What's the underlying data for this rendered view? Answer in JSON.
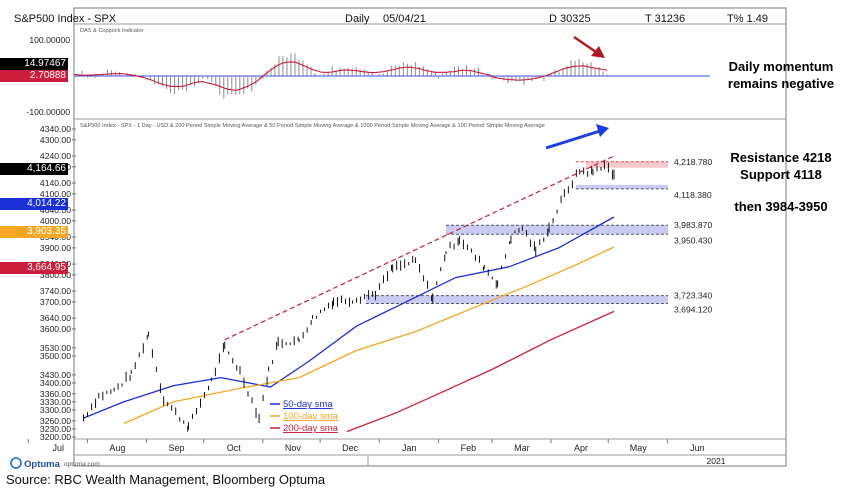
{
  "header": {
    "title": "S&P500 Index - SPX",
    "period": "Daily",
    "date": "05/04/21",
    "d_stat": "D 30325",
    "t_stat": "T 31236",
    "tpct_stat": "T% 1.49"
  },
  "upper_panel": {
    "label": "DAS & Coppock Indicator",
    "ticks": [
      "100.00000",
      "-100.00000"
    ],
    "badges": [
      {
        "text": "14.97467",
        "color": "#000000"
      },
      {
        "text": "2.70888",
        "color": "#cc1e3a"
      }
    ]
  },
  "main_panel": {
    "label": "S&P500 Index - SPX - 1 Day - USD & 200 Period Simple Moving Average & 50 Period Simple Moving Average & 1000 Period Simple Moving Average & 100 Period Simple Moving Average",
    "badges": [
      {
        "text": "4,164.66",
        "color": "#000000"
      },
      {
        "text": "4,014.22",
        "color": "#1a2fd6"
      },
      {
        "text": "3,903.35",
        "color": "#f5a623"
      },
      {
        "text": "3,664.95",
        "color": "#cc1e3a"
      }
    ],
    "levels": [
      {
        "text": "4,218.780"
      },
      {
        "text": "4,118.380"
      },
      {
        "text": "3,983.870"
      },
      {
        "text": "3,950.430"
      },
      {
        "text": "3,723.340"
      },
      {
        "text": "3,694.120"
      }
    ]
  },
  "legend": [
    {
      "text": "50-day sma",
      "color": "#1a2fd6"
    },
    {
      "text": "100-day sma",
      "color": "#f5a623"
    },
    {
      "text": "200-day sma",
      "color": "#cc1e3a"
    }
  ],
  "notes": {
    "momentum_line1": "Daily momentum",
    "momentum_line2": "remains negative",
    "resistance": "Resistance 4218",
    "support": "Support 4118",
    "then": "then 3984-3950"
  },
  "footer": {
    "logo_text": "Optuma",
    "logo_url": "optuma.com",
    "year": "2021",
    "source": "Source: RBC Wealth Management, Bloomberg Optuma"
  },
  "colors": {
    "price": "#111111",
    "sma50": "#1a2fd6",
    "sma100": "#f5a623",
    "sma200": "#cc1e3a",
    "zone": "#c9cbf2",
    "trendline": "#cc1e3a",
    "arrow_up": "#1a3fe0",
    "arrow_down": "#b0181e",
    "zero_line": "#3a4cf0"
  },
  "chart_data": [
    {
      "type": "bar",
      "name": "DAS & Coppock Indicator",
      "ylim": [
        -100,
        100
      ],
      "ticks": [
        100,
        -100
      ],
      "coppock_last": 2.70888,
      "das_last": 14.97467,
      "segments": [
        {
          "from": "Jul",
          "to": "Aug",
          "level": 25
        },
        {
          "from": "Aug",
          "to": "Sep",
          "level": 10
        },
        {
          "from": "Sep",
          "to": "Oct",
          "level": -40
        },
        {
          "from": "Oct",
          "to": "Nov",
          "level": -60
        },
        {
          "from": "Nov",
          "to": "Dec",
          "level": 60
        },
        {
          "from": "Dec",
          "to": "Jan",
          "level": 30
        },
        {
          "from": "Jan",
          "to": "Feb",
          "level": 35
        },
        {
          "from": "Feb",
          "to": "Mar",
          "level": 25
        },
        {
          "from": "Mar",
          "to": "Apr",
          "level": -15
        },
        {
          "from": "Apr",
          "to": "May",
          "level": 40
        }
      ]
    },
    {
      "type": "line",
      "name": "S&P500 Index - SPX - 1 Day",
      "x": [
        "Aug",
        "Sep",
        "Oct",
        "Nov",
        "Dec",
        "Jan",
        "Feb",
        "Mar",
        "Apr",
        "May",
        "Jun",
        "Jul"
      ],
      "year_label": "2021",
      "yticks": [
        4340,
        4300,
        4240,
        4200,
        4140,
        4100,
        4040,
        4000,
        3940,
        3900,
        3840,
        3800,
        3740,
        3700,
        3640,
        3600,
        3530,
        3500,
        3430,
        3400,
        3360,
        3330,
        3300,
        3260,
        3230,
        3200
      ],
      "ylim": [
        3200,
        4340
      ],
      "series": [
        {
          "name": "S&P500 Index - SPX",
          "last": 4164.66,
          "points": [
            [
              "Jul 30",
              3271
            ],
            [
              "Aug 7",
              3351
            ],
            [
              "Aug 15",
              3372
            ],
            [
              "Aug 24",
              3431
            ],
            [
              "Sep 2",
              3580
            ],
            [
              "Sep 10",
              3339
            ],
            [
              "Sep 23",
              3237
            ],
            [
              "Oct 5",
              3408
            ],
            [
              "Oct 12",
              3534
            ],
            [
              "Oct 20",
              3443
            ],
            [
              "Oct 30",
              3270
            ],
            [
              "Nov 4",
              3443
            ],
            [
              "Nov 9",
              3550
            ],
            [
              "Nov 20",
              3557
            ],
            [
              "Nov 27",
              3638
            ],
            [
              "Dec 8",
              3702
            ],
            [
              "Dec 18",
              3709
            ],
            [
              "Dec 30",
              3732
            ],
            [
              "Jan 8",
              3824
            ],
            [
              "Jan 20",
              3851
            ],
            [
              "Jan 29",
              3714
            ],
            [
              "Feb 5",
              3886
            ],
            [
              "Feb 12",
              3934
            ],
            [
              "Feb 25",
              3829
            ],
            [
              "Mar 4",
              3768
            ],
            [
              "Mar 11",
              3939
            ],
            [
              "Mar 17",
              3975
            ],
            [
              "Mar 24",
              3889
            ],
            [
              "Mar 31",
              3973
            ],
            [
              "Apr 8",
              4097
            ],
            [
              "Apr 16",
              4185
            ],
            [
              "Apr 23",
              4180
            ],
            [
              "Apr 29",
              4211
            ],
            [
              "May 4",
              4164.66
            ]
          ]
        },
        {
          "name": "50 Period Simple Moving Average",
          "last": 4014.22,
          "points": [
            [
              "Jul 30",
              3270
            ],
            [
              "Aug 20",
              3330
            ],
            [
              "Sep 15",
              3390
            ],
            [
              "Oct 10",
              3420
            ],
            [
              "Nov 5",
              3385
            ],
            [
              "Nov 25",
              3480
            ],
            [
              "Dec 20",
              3610
            ],
            [
              "Jan 15",
              3700
            ],
            [
              "Feb 10",
              3790
            ],
            [
              "Mar 10",
              3830
            ],
            [
              "Apr 5",
              3900
            ],
            [
              "May 4",
              4014.22
            ]
          ]
        },
        {
          "name": "100 Period Simple Moving Average",
          "last": 3903.35,
          "points": [
            [
              "Aug 20",
              3250
            ],
            [
              "Sep 15",
              3330
            ],
            [
              "Oct 20",
              3380
            ],
            [
              "Nov 20",
              3420
            ],
            [
              "Dec 20",
              3520
            ],
            [
              "Jan 20",
              3590
            ],
            [
              "Feb 20",
              3680
            ],
            [
              "Mar 20",
              3760
            ],
            [
              "Apr 15",
              3840
            ],
            [
              "May 4",
              3903.35
            ]
          ]
        },
        {
          "name": "200 Period Simple Moving Average",
          "last": 3664.95,
          "points": [
            [
              "Dec 15",
              3220
            ],
            [
              "Jan 10",
              3290
            ],
            [
              "Feb 1",
              3360
            ],
            [
              "Mar 1",
              3450
            ],
            [
              "Apr 1",
              3560
            ],
            [
              "May 4",
              3664.95
            ]
          ]
        }
      ],
      "levels": [
        4218.78,
        4118.38,
        3983.87,
        3950.43,
        3723.34,
        3694.12
      ],
      "trendline": {
        "from": [
          "Oct 12",
          3560
        ],
        "to": [
          "May 4",
          4240
        ]
      }
    }
  ]
}
